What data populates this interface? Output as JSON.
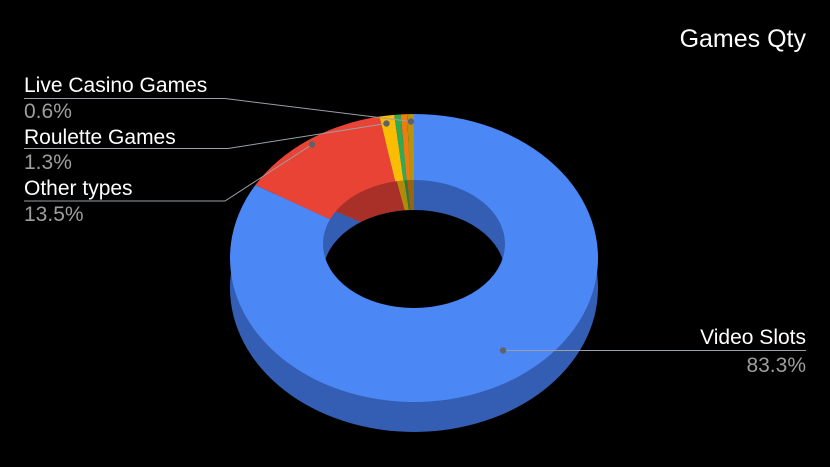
{
  "title": "Games Qty",
  "colors": {
    "background": "#000000",
    "label_text": "#ffffff",
    "percent_text": "#9e9e9e",
    "callout_line": "#9aa0a6",
    "callout_dot": "#5f6368"
  },
  "chart_data": {
    "type": "pie",
    "title": "Games Qty",
    "donut": true,
    "three_d": true,
    "legend_position": "outside-callouts",
    "segments": [
      {
        "label": "Video Slots",
        "pct": 83.3,
        "labeled": true,
        "color": "#4b87f5",
        "side_color": "#345eb4"
      },
      {
        "label": "Other types",
        "pct": 13.5,
        "labeled": true,
        "color": "#e94335",
        "side_color": "#a93028"
      },
      {
        "label": "Roulette Games",
        "pct": 1.3,
        "labeled": true,
        "color": "#fbbc04",
        "side_color": "#b18a0b"
      },
      {
        "label": "",
        "pct": 0.55,
        "labeled": false,
        "color": "#34a853",
        "side_color": "#27793c"
      },
      {
        "label": "",
        "pct": 0.55,
        "labeled": false,
        "color": "#ed7d11",
        "side_color": "#a85a0e"
      },
      {
        "label": "Live Casino Games",
        "pct": 0.6,
        "labeled": true,
        "color": "#b8930b",
        "side_color": "#8a6d0b"
      }
    ],
    "callouts": {
      "left": [
        {
          "name": "Live Casino Games",
          "value": "0.6%"
        },
        {
          "name": "Roulette Games",
          "value": "1.3%"
        },
        {
          "name": "Other types",
          "value": "13.5%"
        }
      ],
      "right": [
        {
          "name": "Video Slots",
          "value": "83.3%"
        }
      ]
    }
  }
}
